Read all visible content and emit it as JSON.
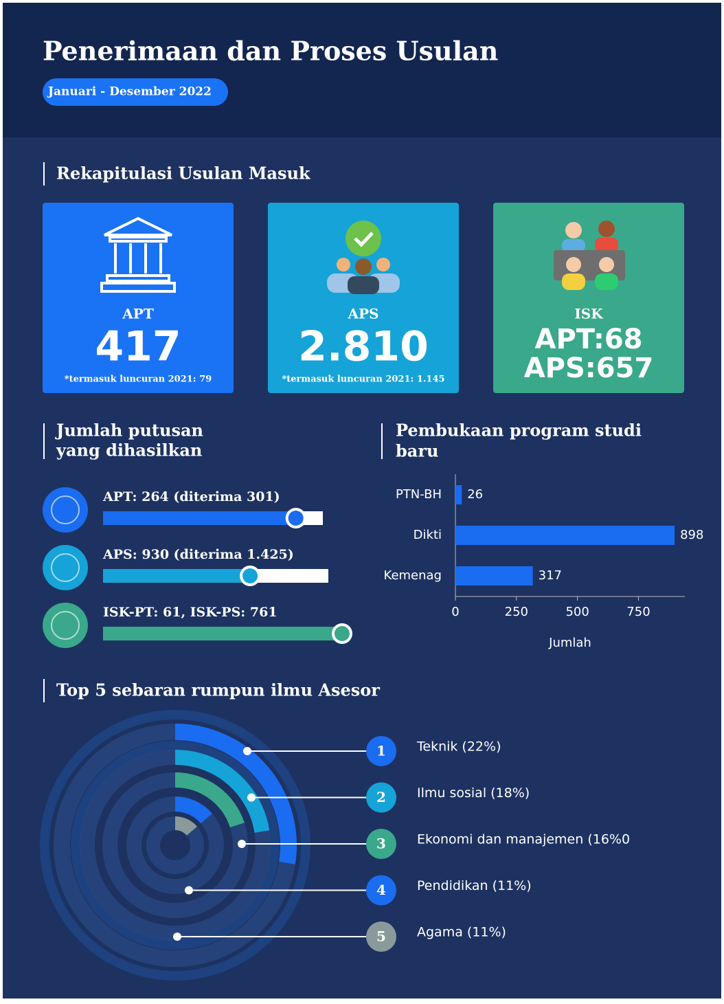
{
  "header": {
    "title": "Penerimaan dan Proses Usulan",
    "period": "Januari - Desember 2022"
  },
  "rekap": {
    "heading": "Rekapitulasi Usulan Masuk",
    "cards": [
      {
        "label": "APT",
        "lines": [
          "417"
        ],
        "note": "*termasuk luncuran 2021: 79"
      },
      {
        "label": "APS",
        "lines": [
          "2.810"
        ],
        "note": "*termasuk luncuran 2021: 1.145"
      },
      {
        "label": "ISK",
        "lines": [
          "APT:68",
          "APS:657"
        ]
      }
    ]
  },
  "putusan": {
    "heading": [
      "Jumlah putusan",
      "yang dihasilkan"
    ],
    "items": [
      {
        "label": "APT: 264 (diterima 301)",
        "value": 264,
        "max": 301,
        "color": "#1a6cf0"
      },
      {
        "label": "APS: 930 (diterima 1.425)",
        "value": 930,
        "max": 1425,
        "color": "#16a3d8"
      },
      {
        "label": "ISK-PT: 61, ISK-PS: 761",
        "color": "#3aa88a"
      }
    ]
  },
  "chart_data": {
    "type": "barh",
    "title": [
      "Pembukaan program studi",
      "baru"
    ],
    "categories": [
      "PTN-BH",
      "Dikti",
      "Kemenag"
    ],
    "values": [
      26,
      898,
      317
    ],
    "color": "#1a6cf0",
    "xlim": [
      0,
      940
    ],
    "xticks": [
      0,
      250,
      500,
      750
    ],
    "xlabel": "Jumlah"
  },
  "top5": {
    "heading": "Top 5 sebaran rumpun ilmu Asesor",
    "items": [
      {
        "rank": "1",
        "label": "Teknik (22%)",
        "value": 22,
        "color": "#1a6cf0"
      },
      {
        "rank": "2",
        "label": "Ilmu sosial (18%)",
        "value": 18,
        "color": "#16a3d8"
      },
      {
        "rank": "3",
        "label": "Ekonomi dan manajemen (16%0",
        "value": 16,
        "color": "#3aa88a"
      },
      {
        "rank": "4",
        "label": "Pendidikan (11%)",
        "value": 11,
        "color": "#1a6cf0"
      },
      {
        "rank": "5",
        "label": "Agama (11%)",
        "value": 11,
        "color": "#8a9a9a"
      }
    ]
  }
}
